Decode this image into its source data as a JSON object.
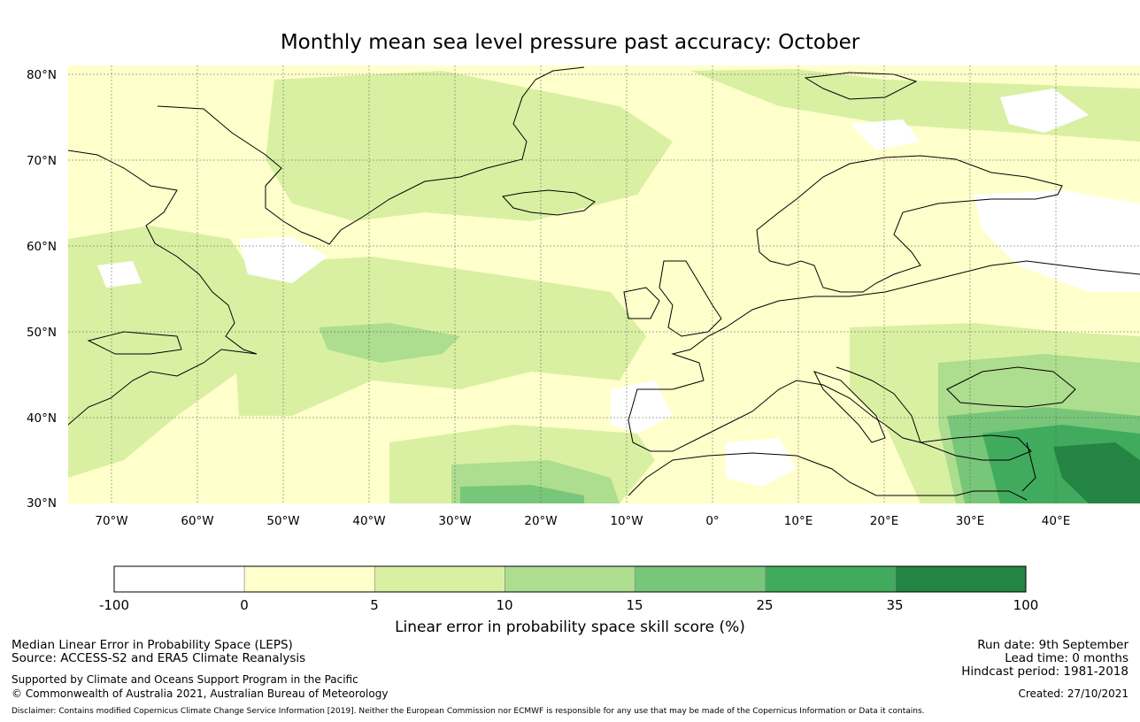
{
  "title": "Monthly mean sea level pressure past accuracy: October",
  "map": {
    "latitude_labels": [
      "80°N",
      "70°N",
      "60°N",
      "50°N",
      "40°N",
      "30°N"
    ],
    "longitude_labels": [
      "70°W",
      "60°W",
      "50°W",
      "40°W",
      "30°W",
      "20°W",
      "10°W",
      "0°",
      "10°E",
      "20°E",
      "30°E",
      "40°E"
    ],
    "lat_range": [
      30,
      81
    ],
    "lon_range": [
      -75,
      50
    ],
    "gridlines": true
  },
  "colorbar": {
    "tick_labels": [
      "-100",
      "0",
      "5",
      "10",
      "15",
      "25",
      "35",
      "100"
    ],
    "colors": [
      "#ffffff",
      "#ffffcc",
      "#d9f0a3",
      "#addd8e",
      "#78c679",
      "#41ab5d",
      "#238443"
    ],
    "label": "Linear error in probability space skill score (%)"
  },
  "footer": {
    "left": {
      "line1": "Median Linear Error in Probability Space (LEPS)",
      "line2": "Source: ACCESS-S2 and ERA5 Climate Reanalysis",
      "line3": "Supported by Climate and Oceans Support Program in the Pacific",
      "line4": "© Commonwealth of Australia 2021, Australian Bureau of Meteorology"
    },
    "right": {
      "run_date": "Run date: 9th September",
      "lead_time": "Lead time: 0 months",
      "hindcast": "Hindcast period: 1981-2018",
      "created": "Created: 27/10/2021"
    },
    "disclaimer": "Disclaimer: Contains modified Copernicus Climate Change Service Information [2019]. Neither the European Commission nor ECMWF is responsible for any use that may be made of the Copernicus Information or Data it contains."
  }
}
